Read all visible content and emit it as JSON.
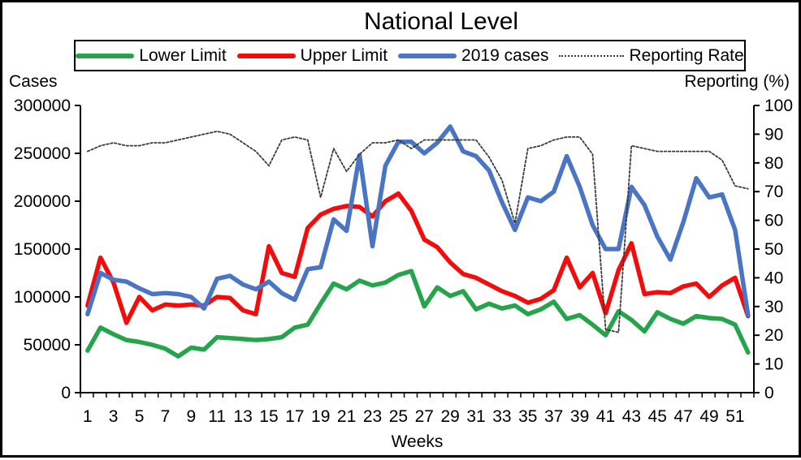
{
  "title": "National Level",
  "left_axis": {
    "title": "Cases",
    "tick_labels": [
      "0",
      "50000",
      "100000",
      "150000",
      "200000",
      "250000",
      "300000"
    ],
    "max": 300000
  },
  "right_axis": {
    "title": "Reporting (%)",
    "tick_labels": [
      "0",
      "10",
      "20",
      "30",
      "40",
      "50",
      "60",
      "70",
      "80",
      "90",
      "100"
    ],
    "max": 100
  },
  "x_axis": {
    "title": "Weeks",
    "tick_labels": [
      "1",
      "3",
      "5",
      "7",
      "9",
      "11",
      "13",
      "15",
      "17",
      "19",
      "21",
      "23",
      "25",
      "27",
      "29",
      "31",
      "33",
      "35",
      "37",
      "39",
      "41",
      "43",
      "45",
      "47",
      "49",
      "51"
    ]
  },
  "chart_data": {
    "type": "line",
    "x": [
      1,
      2,
      3,
      4,
      5,
      6,
      7,
      8,
      9,
      10,
      11,
      12,
      13,
      14,
      15,
      16,
      17,
      18,
      19,
      20,
      21,
      22,
      23,
      24,
      25,
      26,
      27,
      28,
      29,
      30,
      31,
      32,
      33,
      34,
      35,
      36,
      37,
      38,
      39,
      40,
      41,
      42,
      43,
      44,
      45,
      46,
      47,
      48,
      49,
      50,
      51,
      52
    ],
    "xlabel": "Weeks",
    "ylabel_left": "Cases",
    "ylabel_right": "Reporting (%)",
    "ylim_left": [
      0,
      300000
    ],
    "ylim_right": [
      0,
      100
    ],
    "legend_position": "top",
    "grid": false,
    "series": [
      {
        "name": "Lower Limit",
        "color": "#26a44b",
        "axis": "left",
        "style": "solid",
        "values": [
          44000,
          68000,
          61000,
          55000,
          53000,
          50000,
          46000,
          38000,
          47000,
          45000,
          58000,
          57000,
          56000,
          55000,
          56000,
          58000,
          68000,
          71000,
          93000,
          114000,
          108000,
          117000,
          112000,
          115000,
          123000,
          127000,
          90000,
          110000,
          101000,
          106000,
          87000,
          93000,
          88000,
          91000,
          82000,
          87000,
          95000,
          77000,
          81000,
          71000,
          60000,
          85000,
          76000,
          64000,
          84000,
          77000,
          72000,
          80000,
          78000,
          77000,
          71000,
          42000
        ]
      },
      {
        "name": "Upper Limit",
        "color": "#f20d0d",
        "axis": "left",
        "style": "solid",
        "values": [
          91000,
          141000,
          115000,
          73000,
          100000,
          86000,
          92000,
          91000,
          92000,
          91000,
          100000,
          99000,
          86000,
          82000,
          153000,
          125000,
          121000,
          172000,
          186000,
          192000,
          195000,
          194000,
          184000,
          200000,
          208000,
          190000,
          160000,
          152000,
          136000,
          124000,
          120000,
          113000,
          106000,
          101000,
          94000,
          98000,
          107000,
          141000,
          110000,
          125000,
          83000,
          128000,
          156000,
          103000,
          105000,
          104000,
          111000,
          114000,
          100000,
          112000,
          120000,
          80000
        ]
      },
      {
        "name": "2019 cases",
        "color": "#4a74c4",
        "axis": "left",
        "style": "solid",
        "values": [
          82000,
          125000,
          118000,
          116000,
          109000,
          103000,
          104000,
          103000,
          100000,
          88000,
          119000,
          122000,
          113000,
          108000,
          116000,
          104000,
          97000,
          129000,
          131000,
          181000,
          169000,
          248000,
          153000,
          237000,
          262000,
          262000,
          250000,
          261000,
          278000,
          252000,
          247000,
          232000,
          199000,
          170000,
          204000,
          200000,
          210000,
          247000,
          215000,
          175000,
          150000,
          150000,
          215000,
          196000,
          163000,
          139000,
          178000,
          224000,
          204000,
          207000,
          170000,
          81000
        ]
      },
      {
        "name": "Reporting Rate",
        "color": "#3a3a3a",
        "axis": "right",
        "style": "dotted",
        "values": [
          84,
          86,
          87,
          86,
          86,
          87,
          87,
          88,
          89,
          90,
          91,
          90,
          87,
          84,
          79,
          88,
          89,
          88,
          68,
          85,
          77,
          83,
          87,
          87,
          88,
          85,
          88,
          88,
          88,
          88,
          88,
          82,
          74,
          59,
          85,
          86,
          88,
          89,
          89,
          83,
          22,
          21,
          86,
          85,
          84,
          84,
          84,
          84,
          84,
          81,
          72,
          71
        ]
      }
    ]
  }
}
